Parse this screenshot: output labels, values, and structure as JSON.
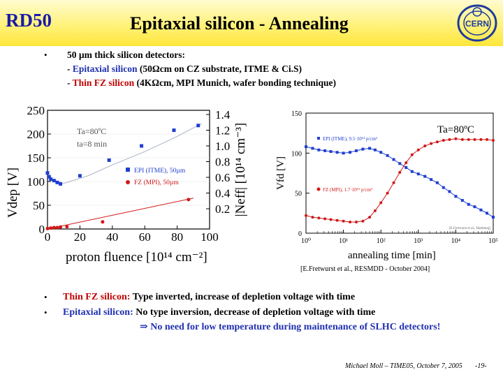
{
  "header": {
    "left_label": "RD50",
    "title": "Epitaxial silicon - Annealing",
    "logo_text": "CERN"
  },
  "intro": {
    "line1": "50 µm thick silicon detectors:",
    "line2_prefix": "- ",
    "line2_colored": "Epitaxial silicon",
    "line2_rest": " (50Ωcm on CZ substrate, ITME & Ci.S)",
    "line3_prefix": "- ",
    "line3_colored": "Thin FZ silicon",
    "line3_rest": " (4KΩcm, MPI Munich, wafer bonding technique)"
  },
  "chart_data": [
    {
      "type": "scatter",
      "xlabel": "proton fluence [10¹⁴ cm⁻²]",
      "ylabel": "Vdep [V]",
      "ylabel_right": "|Neff| [10¹⁴ cm⁻³]",
      "xlim": [
        0,
        100
      ],
      "ylim": [
        0,
        250
      ],
      "x_ticks": [
        "0",
        "20",
        "40",
        "60",
        "80",
        "100"
      ],
      "y_ticks": [
        "0",
        "50",
        "100",
        "150",
        "200",
        "250"
      ],
      "y_right_ticks": [
        "0.2",
        "0.4",
        "0.6",
        "0.8",
        "1.0",
        "1.2",
        "1.4"
      ],
      "annotation_1": "Ta=80ºC",
      "annotation_2": "ta=8 min",
      "series": [
        {
          "name": "EPI (ITME), 50µm",
          "color": "#1f3fd0",
          "points": [
            [
              0,
              118
            ],
            [
              1,
              110
            ],
            [
              2,
              105
            ],
            [
              4,
              102
            ],
            [
              6,
              98
            ],
            [
              8,
              95
            ],
            [
              20,
              112
            ],
            [
              38,
              145
            ],
            [
              58,
              175
            ],
            [
              78,
              208
            ],
            [
              93,
              218
            ]
          ]
        },
        {
          "name": "FZ (MPI), 50µm",
          "color": "#d01818",
          "points": [
            [
              0,
              1
            ],
            [
              2,
              2
            ],
            [
              4,
              3
            ],
            [
              6,
              3
            ],
            [
              8,
              4
            ],
            [
              12,
              5
            ],
            [
              34,
              15
            ],
            [
              87,
              62
            ]
          ]
        }
      ]
    },
    {
      "type": "line",
      "xlabel": "annealing time [min]",
      "ylabel": "Vfd [V]",
      "x_scale": "log",
      "xlim": [
        1,
        100000
      ],
      "ylim": [
        0,
        150
      ],
      "x_ticks": [
        "10⁰",
        "10¹",
        "10²",
        "10³",
        "10⁴",
        "10⁵"
      ],
      "y_ticks": [
        "0",
        "50",
        "100",
        "150"
      ],
      "annotation": "Ta=80ºC",
      "credit": "[E.Fretwurst et al., Hamburg]",
      "series": [
        {
          "name": "EPI (ITME), 9.5·10¹⁴ p/cm²",
          "color": "#1f3fd0",
          "points": [
            [
              1,
              108
            ],
            [
              1.5,
              106
            ],
            [
              2.2,
              104
            ],
            [
              3.2,
              103
            ],
            [
              4.6,
              102
            ],
            [
              6.8,
              101
            ],
            [
              10,
              100
            ],
            [
              15,
              101
            ],
            [
              22,
              103
            ],
            [
              33,
              105
            ],
            [
              50,
              106
            ],
            [
              70,
              104
            ],
            [
              100,
              101
            ],
            [
              150,
              97
            ],
            [
              220,
              92
            ],
            [
              320,
              87
            ],
            [
              470,
              82
            ],
            [
              680,
              77
            ],
            [
              1000,
              74
            ],
            [
              1500,
              71
            ],
            [
              2200,
              67
            ],
            [
              3200,
              63
            ],
            [
              4700,
              57
            ],
            [
              6800,
              52
            ],
            [
              10000,
              46
            ],
            [
              15000,
              41
            ],
            [
              22000,
              36
            ],
            [
              32000,
              33
            ],
            [
              47000,
              29
            ],
            [
              68000,
              25
            ],
            [
              100000,
              20
            ]
          ]
        },
        {
          "name": "FZ (MPI), 1.7·10¹⁵ p/cm²",
          "color": "#d01818",
          "points": [
            [
              1,
              22
            ],
            [
              1.5,
              20
            ],
            [
              2.2,
              19
            ],
            [
              3.2,
              18
            ],
            [
              4.6,
              17
            ],
            [
              6.8,
              16
            ],
            [
              10,
              15
            ],
            [
              15,
              14
            ],
            [
              22,
              14
            ],
            [
              33,
              15
            ],
            [
              50,
              20
            ],
            [
              70,
              28
            ],
            [
              100,
              38
            ],
            [
              150,
              50
            ],
            [
              220,
              63
            ],
            [
              320,
              76
            ],
            [
              470,
              88
            ],
            [
              680,
              98
            ],
            [
              1000,
              104
            ],
            [
              1500,
              109
            ],
            [
              2200,
              112
            ],
            [
              3200,
              114
            ],
            [
              4700,
              116
            ],
            [
              6800,
              117
            ],
            [
              10000,
              118
            ],
            [
              15000,
              117
            ],
            [
              22000,
              117
            ],
            [
              32000,
              117
            ],
            [
              47000,
              117
            ],
            [
              68000,
              117
            ],
            [
              100000,
              116
            ]
          ]
        }
      ]
    }
  ],
  "reference": "[E.Fretwurst et al., RESMDD - October 2004]",
  "conclusions": [
    {
      "colored": "Thin FZ silicon:",
      "rest": " Type inverted, increase of depletion voltage with time",
      "color": "#c00000"
    },
    {
      "colored": "Epitaxial silicon:",
      "rest": " No type inversion, decrease of depletion voltage with time",
      "color": "#1f2fb0"
    }
  ],
  "conclusion_arrow": "⇒",
  "conclusion_final": "No need for low temperature during maintenance of  SLHC detectors!",
  "footer": {
    "author": "Michael Moll – TIME05, October 7, 2005",
    "page": "-19-"
  }
}
